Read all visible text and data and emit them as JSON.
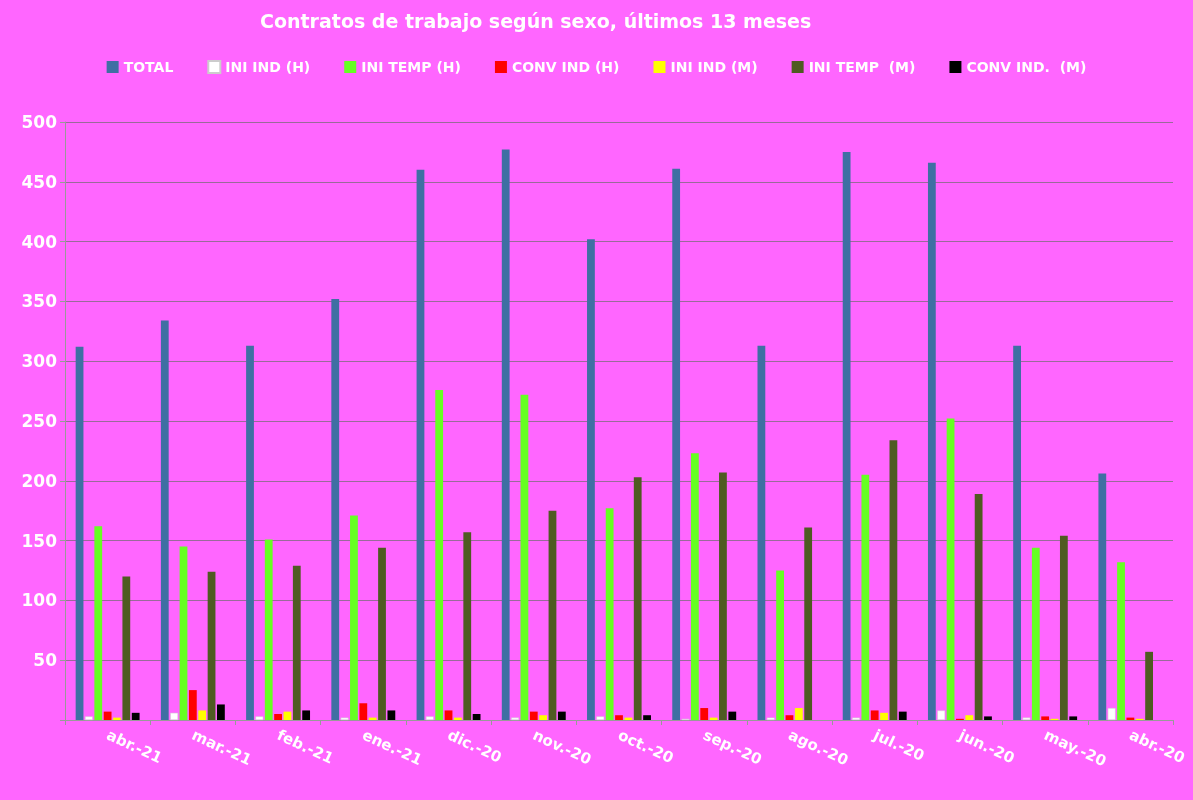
{
  "chart_data": {
    "type": "bar",
    "title": "Contratos de trabajo según sexo, últimos 13 meses",
    "categories": [
      "abr.-21",
      "mar.-21",
      "feb.-21",
      "ene.-21",
      "dic.-20",
      "nov.-20",
      "oct.-20",
      "sep.-20",
      "ago.-20",
      "jul.-20",
      "jun.-20",
      "may.-20",
      "abr.-20"
    ],
    "series": [
      {
        "name": "TOTAL",
        "color": "#3f6fa3",
        "values": [
          312,
          334,
          313,
          352,
          460,
          477,
          402,
          461,
          313,
          475,
          466,
          313,
          206
        ]
      },
      {
        "name": "INI IND (H)",
        "color": "#ffffff",
        "values": [
          3,
          6,
          3,
          2,
          3,
          2,
          3,
          1,
          2,
          2,
          8,
          2,
          10
        ]
      },
      {
        "name": "INI TEMP (H)",
        "color": "#66ff22",
        "values": [
          162,
          145,
          151,
          171,
          276,
          272,
          177,
          223,
          125,
          205,
          252,
          144,
          132
        ]
      },
      {
        "name": "CONV IND (H)",
        "color": "#ff0000",
        "values": [
          7,
          25,
          5,
          14,
          8,
          7,
          4,
          10,
          4,
          8,
          1,
          3,
          2
        ]
      },
      {
        "name": "INI IND (M)",
        "color": "#ffff00",
        "values": [
          2,
          8,
          7,
          2,
          2,
          4,
          2,
          2,
          10,
          6,
          4,
          1,
          1
        ]
      },
      {
        "name": "INI TEMP  (M)",
        "color": "#4f5b22",
        "values": [
          120,
          124,
          129,
          144,
          157,
          175,
          203,
          207,
          161,
          234,
          189,
          154,
          57
        ]
      },
      {
        "name": "CONV IND.  (M)",
        "color": "#000000",
        "values": [
          6,
          13,
          8,
          8,
          5,
          7,
          4,
          7,
          0,
          7,
          3,
          3,
          0
        ]
      }
    ],
    "ylim": [
      0,
      500
    ],
    "yticks": [
      {
        "value": 0,
        "label": null
      },
      50,
      100,
      150,
      200,
      250,
      300,
      350,
      400,
      450,
      500
    ],
    "grid": "y",
    "legend": "top"
  }
}
